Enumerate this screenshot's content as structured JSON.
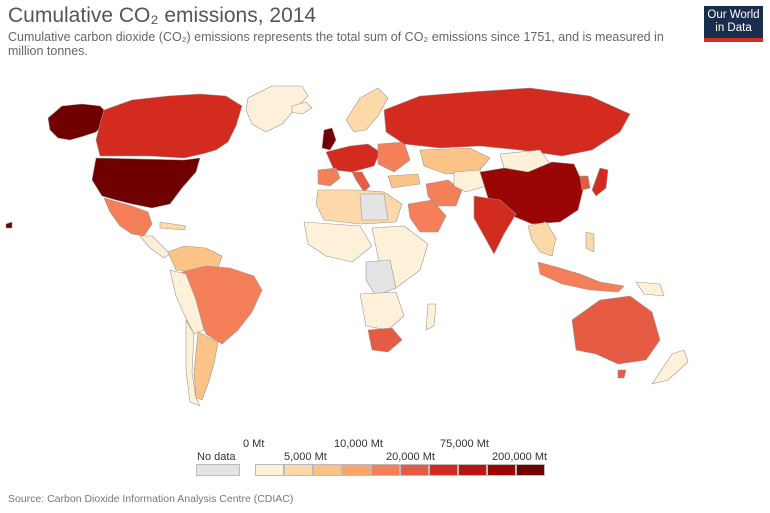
{
  "title": "Cumulative CO₂ emissions, 2014",
  "subtitle": "Cumulative carbon dioxide (CO₂) emissions represents the total sum of CO₂ emissions since 1751, and is measured in million tonnes.",
  "logo": {
    "line1": "Our World",
    "line2": "in Data"
  },
  "legend": {
    "no_data_label": "No data",
    "ticks_top": [
      "0 Mt",
      "10,000 Mt",
      "75,000 Mt"
    ],
    "ticks_bottom": [
      "5,000 Mt",
      "20,000 Mt",
      "200,000 Mt"
    ],
    "colors": [
      "#fef0d9",
      "#fdd9a9",
      "#fcc386",
      "#fca56b",
      "#f47f59",
      "#e55b43",
      "#d42b21",
      "#bb1513",
      "#9a0505",
      "#700000"
    ]
  },
  "source": "Source: Carbon Dioxide Information Analysis Centre (CDIAC)"
}
